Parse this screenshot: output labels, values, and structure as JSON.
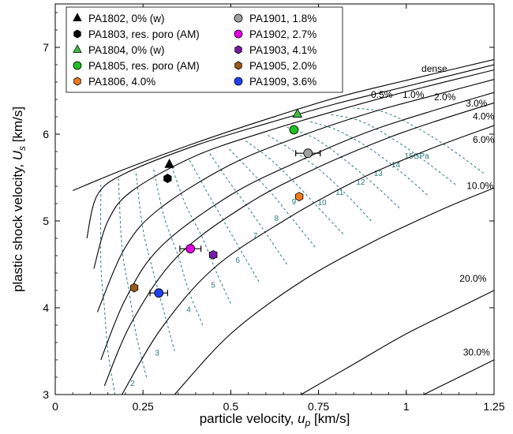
{
  "chart_data": {
    "type": "scatter",
    "title": "",
    "xlabel_main": "particle velocity, ",
    "xlabel_sym": "u",
    "xlabel_sub": "p",
    "xlabel_unit": " [km/s]",
    "ylabel_main": "plastic shock velocity, ",
    "ylabel_sym": "U",
    "ylabel_sub": "s",
    "ylabel_unit": " [km/s]",
    "xlim": [
      0,
      1.25
    ],
    "ylim": [
      3,
      7.5
    ],
    "xticks": [
      "0",
      "0.25",
      "0.5",
      "0.75",
      "1",
      "1.25"
    ],
    "yticks": [
      "3",
      "4",
      "5",
      "6",
      "7"
    ],
    "legend_position": "top-left",
    "series": [
      {
        "name": "PA1802, 0% (w)",
        "marker": "triangle",
        "color": "#000000",
        "x": 0.325,
        "y": 5.65,
        "xerr": 0
      },
      {
        "name": "PA1901, 1.8%",
        "marker": "circle",
        "color": "#a0a0a0",
        "x": 0.72,
        "y": 5.78,
        "xerr": 0.035
      },
      {
        "name": "PA1803, res. poro (AM)",
        "marker": "hexagon",
        "color": "#000000",
        "x": 0.32,
        "y": 5.49,
        "xerr": 0
      },
      {
        "name": "PA1902, 2.7%",
        "marker": "circle",
        "color": "#e000e0",
        "x": 0.385,
        "y": 4.68,
        "xerr": 0.03
      },
      {
        "name": "PA1804, 0% (w)",
        "marker": "triangle",
        "color": "#40c040",
        "x": 0.69,
        "y": 6.23,
        "xerr": 0
      },
      {
        "name": "PA1903, 4.1%",
        "marker": "hexagon",
        "color": "#7a1aa8",
        "x": 0.45,
        "y": 4.61,
        "xerr": 0.01
      },
      {
        "name": "PA1805, res. poro (AM)",
        "marker": "circle",
        "color": "#20c020",
        "x": 0.68,
        "y": 6.05,
        "xerr": 0
      },
      {
        "name": "PA1905, 2.0%",
        "marker": "hexagon",
        "color": "#9a5a1a",
        "x": 0.225,
        "y": 4.23,
        "xerr": 0
      },
      {
        "name": "PA1806, 4.0%",
        "marker": "hexagon",
        "color": "#f07a20",
        "x": 0.695,
        "y": 5.28,
        "xerr": 0
      },
      {
        "name": "PA1909, 3.6%",
        "marker": "circle",
        "color": "#2040f0",
        "x": 0.295,
        "y": 4.17,
        "xerr": 0.025
      }
    ],
    "hugoniot_curves": [
      {
        "label": "dense",
        "points": [
          [
            0.05,
            5.35
          ],
          [
            0.2,
            5.6
          ],
          [
            0.4,
            5.9
          ],
          [
            0.6,
            6.17
          ],
          [
            0.8,
            6.42
          ],
          [
            1.0,
            6.62
          ],
          [
            1.25,
            6.86
          ]
        ]
      },
      {
        "label": "0.5%",
        "points": [
          [
            0.09,
            4.8
          ],
          [
            0.12,
            5.3
          ],
          [
            0.2,
            5.55
          ],
          [
            0.4,
            5.87
          ],
          [
            0.6,
            6.12
          ],
          [
            0.8,
            6.35
          ],
          [
            1.0,
            6.55
          ],
          [
            1.25,
            6.8
          ]
        ]
      },
      {
        "label": "1.0%",
        "points": [
          [
            0.11,
            4.45
          ],
          [
            0.15,
            5.0
          ],
          [
            0.22,
            5.35
          ],
          [
            0.4,
            5.75
          ],
          [
            0.6,
            6.03
          ],
          [
            0.8,
            6.27
          ],
          [
            1.0,
            6.49
          ],
          [
            1.25,
            6.74
          ]
        ]
      },
      {
        "label": "2.0%",
        "points": [
          [
            0.12,
            3.95
          ],
          [
            0.2,
            4.7
          ],
          [
            0.3,
            5.15
          ],
          [
            0.5,
            5.65
          ],
          [
            0.7,
            5.98
          ],
          [
            0.9,
            6.25
          ],
          [
            1.1,
            6.47
          ],
          [
            1.25,
            6.63
          ]
        ]
      },
      {
        "label": "3.0%",
        "points": [
          [
            0.13,
            3.4
          ],
          [
            0.2,
            4.1
          ],
          [
            0.3,
            4.7
          ],
          [
            0.5,
            5.3
          ],
          [
            0.7,
            5.7
          ],
          [
            0.9,
            6.04
          ],
          [
            1.1,
            6.3
          ],
          [
            1.25,
            6.48
          ]
        ]
      },
      {
        "label": "4.0%",
        "points": [
          [
            0.14,
            3.1
          ],
          [
            0.22,
            3.85
          ],
          [
            0.35,
            4.6
          ],
          [
            0.55,
            5.2
          ],
          [
            0.75,
            5.62
          ],
          [
            0.95,
            5.96
          ],
          [
            1.1,
            6.17
          ],
          [
            1.25,
            6.36
          ]
        ]
      },
      {
        "label": "6.0%",
        "points": [
          [
            0.19,
            3.0
          ],
          [
            0.3,
            3.75
          ],
          [
            0.45,
            4.45
          ],
          [
            0.65,
            5.0
          ],
          [
            0.85,
            5.45
          ],
          [
            1.05,
            5.8
          ],
          [
            1.25,
            6.1
          ]
        ]
      },
      {
        "label": "10.0%",
        "points": [
          [
            0.34,
            3.0
          ],
          [
            0.5,
            3.7
          ],
          [
            0.7,
            4.3
          ],
          [
            0.9,
            4.75
          ],
          [
            1.1,
            5.13
          ],
          [
            1.25,
            5.38
          ]
        ]
      },
      {
        "label": "20.0%",
        "points": [
          [
            0.7,
            3.0
          ],
          [
            0.85,
            3.35
          ],
          [
            1.0,
            3.7
          ],
          [
            1.15,
            4.0
          ],
          [
            1.25,
            4.2
          ]
        ]
      },
      {
        "label": "30.0%",
        "points": [
          [
            1.05,
            3.0
          ],
          [
            1.15,
            3.2
          ],
          [
            1.25,
            3.4
          ]
        ]
      }
    ],
    "curve_labels": [
      {
        "text": "dense",
        "x": 1.08,
        "y": 6.72
      },
      {
        "text": "0.5%",
        "x": 0.93,
        "y": 6.42
      },
      {
        "text": "1.0%",
        "x": 1.02,
        "y": 6.42
      },
      {
        "text": "2.0%",
        "x": 1.11,
        "y": 6.39
      },
      {
        "text": "3.0%",
        "x": 1.2,
        "y": 6.32
      },
      {
        "text": "4.0%",
        "x": 1.22,
        "y": 6.17
      },
      {
        "text": "6.0%",
        "x": 1.22,
        "y": 5.9
      },
      {
        "text": "10.0%",
        "x": 1.21,
        "y": 5.37
      },
      {
        "text": "20.0%",
        "x": 1.19,
        "y": 4.3
      },
      {
        "text": "30.0%",
        "x": 1.2,
        "y": 3.45
      }
    ],
    "pressure_isobars": [
      {
        "label": "2",
        "points": [
          [
            0.17,
            3.0
          ],
          [
            0.15,
            3.5
          ],
          [
            0.14,
            4.0
          ],
          [
            0.13,
            4.5
          ],
          [
            0.13,
            5.45
          ]
        ]
      },
      {
        "label": "3",
        "points": [
          [
            0.26,
            3.2
          ],
          [
            0.23,
            3.7
          ],
          [
            0.21,
            4.2
          ],
          [
            0.19,
            4.7
          ],
          [
            0.18,
            5.5
          ]
        ]
      },
      {
        "label": "4",
        "points": [
          [
            0.34,
            3.5
          ],
          [
            0.31,
            3.95
          ],
          [
            0.28,
            4.4
          ],
          [
            0.25,
            4.9
          ],
          [
            0.23,
            5.55
          ]
        ]
      },
      {
        "label": "5",
        "points": [
          [
            0.42,
            3.8
          ],
          [
            0.38,
            4.2
          ],
          [
            0.35,
            4.6
          ],
          [
            0.31,
            5.05
          ],
          [
            0.28,
            5.6
          ]
        ]
      },
      {
        "label": "6",
        "points": [
          [
            0.5,
            4.05
          ],
          [
            0.46,
            4.4
          ],
          [
            0.42,
            4.8
          ],
          [
            0.37,
            5.2
          ],
          [
            0.33,
            5.65
          ]
        ]
      },
      {
        "label": "7",
        "points": [
          [
            0.58,
            4.3
          ],
          [
            0.53,
            4.65
          ],
          [
            0.48,
            5.0
          ],
          [
            0.43,
            5.35
          ],
          [
            0.38,
            5.72
          ]
        ]
      },
      {
        "label": "8",
        "points": [
          [
            0.66,
            4.5
          ],
          [
            0.61,
            4.8
          ],
          [
            0.55,
            5.15
          ],
          [
            0.49,
            5.48
          ],
          [
            0.44,
            5.78
          ]
        ]
      },
      {
        "label": "9",
        "points": [
          [
            0.74,
            4.7
          ],
          [
            0.68,
            5.0
          ],
          [
            0.62,
            5.3
          ],
          [
            0.55,
            5.6
          ],
          [
            0.49,
            5.85
          ]
        ]
      },
      {
        "label": "10",
        "points": [
          [
            0.82,
            4.85
          ],
          [
            0.75,
            5.15
          ],
          [
            0.68,
            5.45
          ],
          [
            0.61,
            5.72
          ],
          [
            0.54,
            5.93
          ]
        ]
      },
      {
        "label": "11",
        "points": [
          [
            0.9,
            5.0
          ],
          [
            0.83,
            5.3
          ],
          [
            0.75,
            5.6
          ],
          [
            0.67,
            5.83
          ],
          [
            0.6,
            6.0
          ]
        ]
      },
      {
        "label": "12",
        "points": [
          [
            0.98,
            5.15
          ],
          [
            0.9,
            5.45
          ],
          [
            0.82,
            5.72
          ],
          [
            0.74,
            5.95
          ],
          [
            0.66,
            6.08
          ]
        ]
      },
      {
        "label": "13",
        "points": [
          [
            1.06,
            5.3
          ],
          [
            0.98,
            5.58
          ],
          [
            0.89,
            5.85
          ],
          [
            0.8,
            6.05
          ],
          [
            0.72,
            6.15
          ]
        ]
      },
      {
        "label": "14",
        "points": [
          [
            1.14,
            5.42
          ],
          [
            1.05,
            5.7
          ],
          [
            0.96,
            5.95
          ],
          [
            0.87,
            6.15
          ],
          [
            0.78,
            6.23
          ]
        ]
      },
      {
        "label": "15GPa",
        "points": [
          [
            1.22,
            5.55
          ],
          [
            1.13,
            5.82
          ],
          [
            1.04,
            6.05
          ],
          [
            0.94,
            6.25
          ],
          [
            0.85,
            6.3
          ]
        ]
      }
    ],
    "isobar_labels": [
      {
        "text": "2",
        "x": 0.22,
        "y": 3.1
      },
      {
        "text": "3",
        "x": 0.29,
        "y": 3.45
      },
      {
        "text": "4",
        "x": 0.38,
        "y": 3.95
      },
      {
        "text": "5",
        "x": 0.45,
        "y": 4.23
      },
      {
        "text": "6",
        "x": 0.52,
        "y": 4.52
      },
      {
        "text": "7",
        "x": 0.57,
        "y": 4.8
      },
      {
        "text": "8",
        "x": 0.63,
        "y": 5.0
      },
      {
        "text": "9",
        "x": 0.68,
        "y": 5.19
      },
      {
        "text": "10",
        "x": 0.76,
        "y": 5.18
      },
      {
        "text": "11",
        "x": 0.81,
        "y": 5.3
      },
      {
        "text": "12",
        "x": 0.87,
        "y": 5.42
      },
      {
        "text": "13",
        "x": 0.92,
        "y": 5.52
      },
      {
        "text": "14",
        "x": 0.97,
        "y": 5.62
      },
      {
        "text": "15GPa",
        "x": 1.03,
        "y": 5.72
      }
    ]
  }
}
